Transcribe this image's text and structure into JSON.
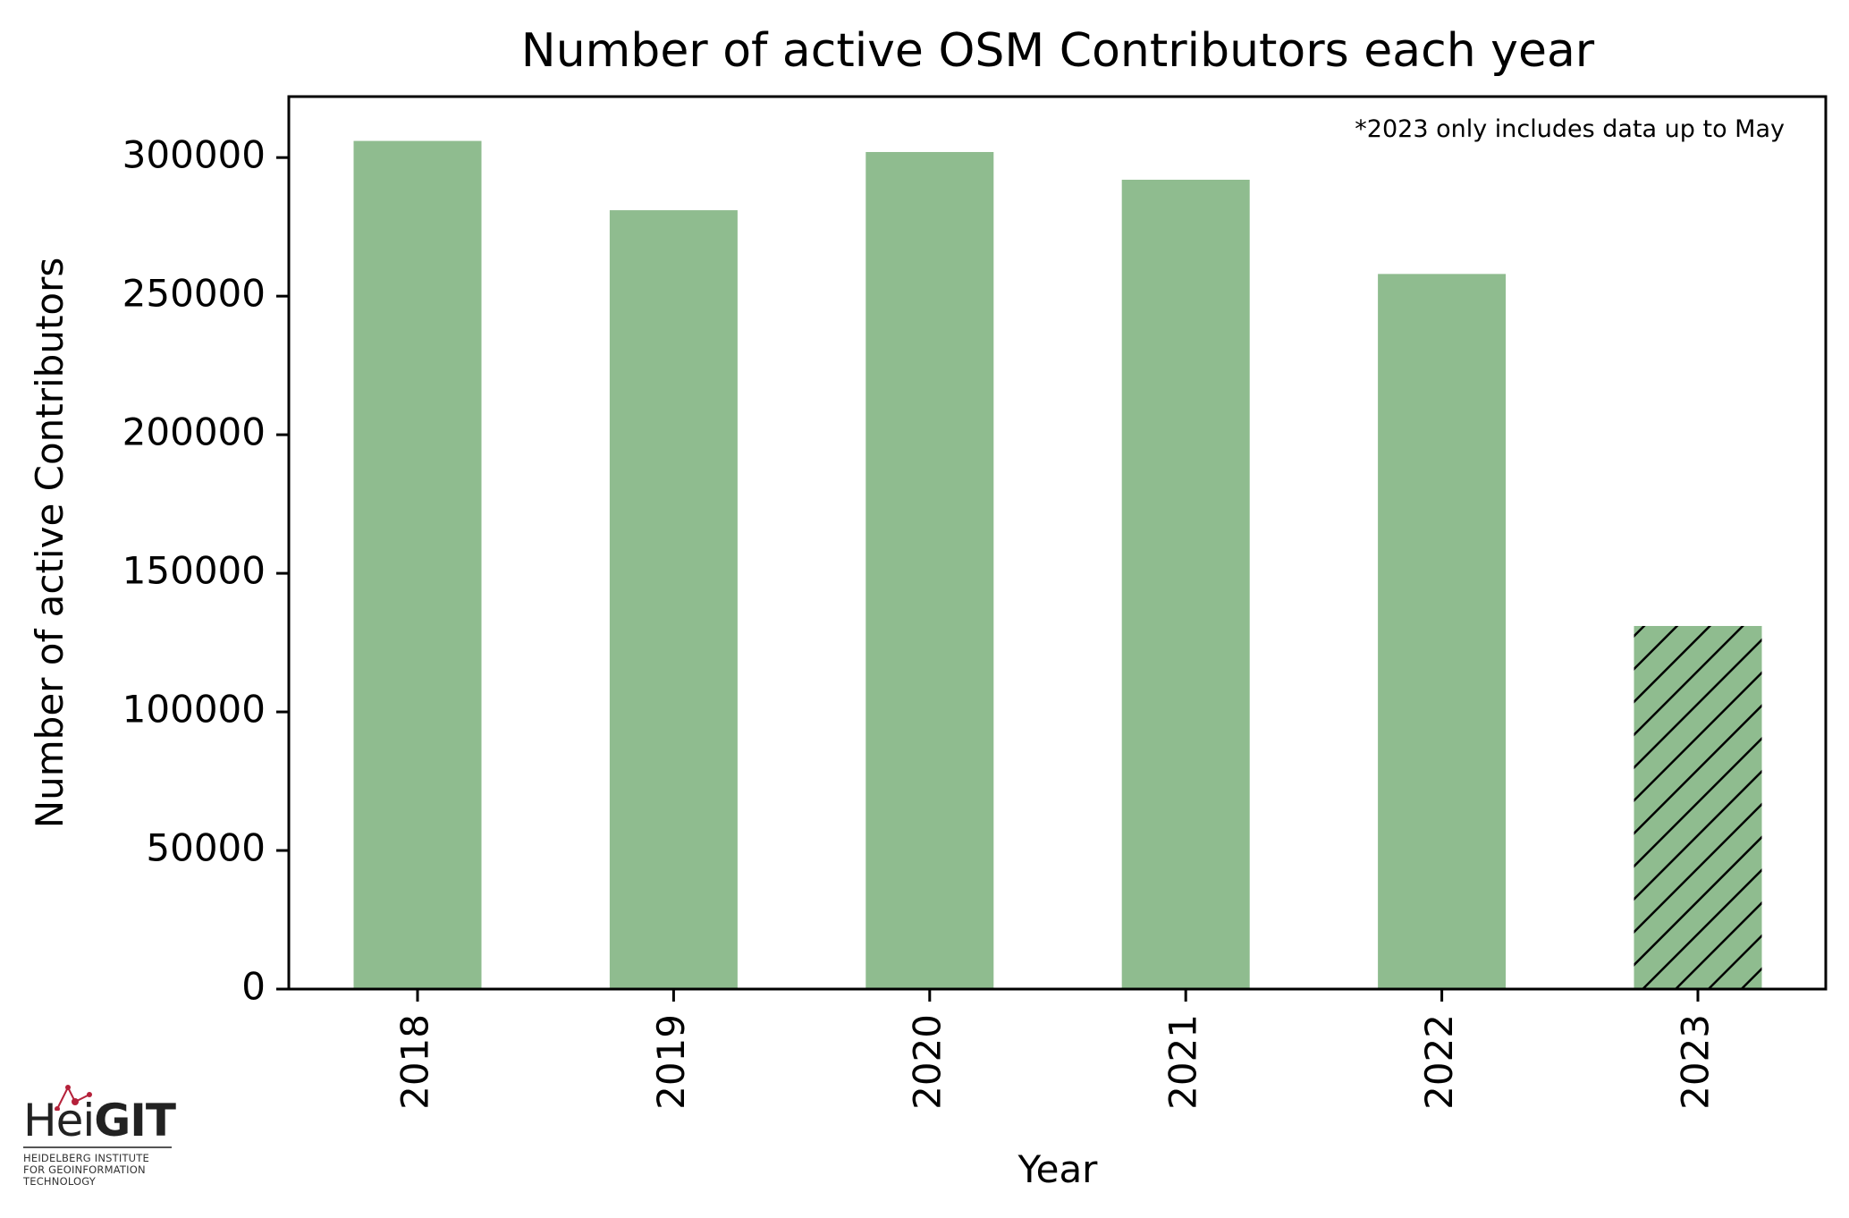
{
  "chart_data": {
    "type": "bar",
    "title": "Number of active OSM Contributors each year",
    "xlabel": "Year",
    "ylabel": "Number of active Contributors",
    "categories": [
      "2018",
      "2019",
      "2020",
      "2021",
      "2022",
      "2023"
    ],
    "values": [
      306000,
      281000,
      302000,
      292000,
      258000,
      131000
    ],
    "hatched": [
      false,
      false,
      false,
      false,
      false,
      true
    ],
    "ylim": [
      0,
      322000
    ],
    "yticks": [
      0,
      50000,
      100000,
      150000,
      200000,
      250000,
      300000
    ],
    "ytick_labels": [
      "0",
      "50000",
      "100000",
      "150000",
      "200000",
      "250000",
      "300000"
    ],
    "annotation": "*2023 only includes data up to May",
    "bar_color": "#8fbc8f",
    "hatch_color": "#000000",
    "grid": false,
    "legend": "none"
  },
  "logo": {
    "hei": "Hei",
    "git": "GIT",
    "subtitle_lines": [
      "HEIDELBERG INSTITUTE",
      "FOR GEOINFORMATION",
      "TECHNOLOGY"
    ],
    "accent_color": "#b5213a"
  }
}
